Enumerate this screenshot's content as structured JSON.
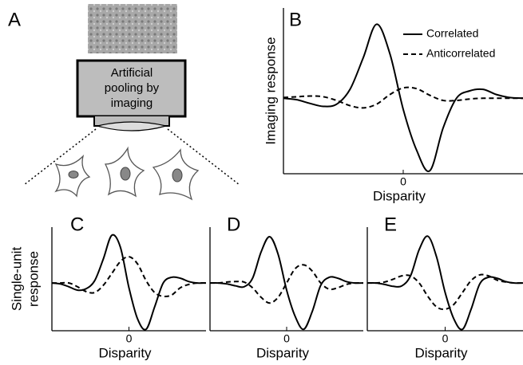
{
  "diagram": {
    "panel_label": "A",
    "box_text": [
      "Artificial",
      "pooling by",
      "imaging"
    ]
  },
  "chart_data": [
    {
      "type": "line",
      "panel_label": "B",
      "ylabel": "Imaging response",
      "xlabel": "Disparity",
      "xlim": [
        -0.9,
        0.9
      ],
      "ylim": [
        -1.02,
        1.22
      ],
      "xticks": [
        0
      ],
      "legend": "upper right",
      "x": [
        -0.9,
        -0.8,
        -0.7,
        -0.6,
        -0.5,
        -0.4,
        -0.3,
        -0.2,
        -0.1,
        0,
        0.1,
        0.2,
        0.3,
        0.4,
        0.5,
        0.6,
        0.7,
        0.8,
        0.9
      ],
      "series": [
        {
          "name": "Correlated",
          "color": "#000000",
          "style": "solid",
          "values": [
            0,
            -0.02,
            -0.07,
            -0.11,
            -0.08,
            0.12,
            0.55,
            1.0,
            0.6,
            -0.15,
            -0.7,
            -0.98,
            -0.4,
            0.0,
            0.1,
            0.12,
            0.05,
            0.01,
            0
          ]
        },
        {
          "name": "Anticorrelated",
          "color": "#000000",
          "style": "dashed",
          "values": [
            0.01,
            0.02,
            0.03,
            0.02,
            -0.03,
            -0.1,
            -0.13,
            -0.08,
            0.05,
            0.14,
            0.13,
            0.04,
            -0.03,
            -0.03,
            -0.01,
            0,
            0,
            0,
            0
          ]
        }
      ]
    },
    {
      "type": "line",
      "panel_label": "C",
      "ylabel": [
        "Single-unit",
        "response"
      ],
      "xlabel": "Disparity",
      "xlim": [
        -0.9,
        0.9
      ],
      "ylim": [
        -1.0,
        1.17
      ],
      "xticks": [
        0
      ],
      "legend": false,
      "x": [
        -0.9,
        -0.8,
        -0.7,
        -0.6,
        -0.5,
        -0.4,
        -0.3,
        -0.2,
        -0.1,
        0,
        0.1,
        0.2,
        0.3,
        0.4,
        0.5,
        0.6,
        0.7,
        0.8,
        0.9
      ],
      "series": [
        {
          "color": "#000000",
          "style": "solid",
          "values": [
            0,
            -0.02,
            -0.08,
            -0.15,
            -0.12,
            0.05,
            0.5,
            1.0,
            0.75,
            -0.1,
            -0.75,
            -0.97,
            -0.5,
            0.0,
            0.12,
            0.1,
            0.03,
            0,
            0
          ]
        },
        {
          "color": "#000000",
          "style": "dashed",
          "values": [
            0,
            0,
            0,
            -0.08,
            -0.18,
            -0.2,
            -0.05,
            0.2,
            0.45,
            0.55,
            0.4,
            0.05,
            -0.2,
            -0.28,
            -0.25,
            -0.1,
            -0.03,
            0,
            0
          ]
        }
      ]
    },
    {
      "type": "line",
      "panel_label": "D",
      "xlabel": "Disparity",
      "xlim": [
        -0.9,
        0.9
      ],
      "ylim": [
        -1.0,
        1.17
      ],
      "xticks": [
        0
      ],
      "legend": false,
      "x": [
        -0.9,
        -0.8,
        -0.7,
        -0.6,
        -0.5,
        -0.4,
        -0.3,
        -0.2,
        -0.1,
        0,
        0.1,
        0.2,
        0.3,
        0.4,
        0.5,
        0.6,
        0.7,
        0.8,
        0.9
      ],
      "series": [
        {
          "color": "#000000",
          "style": "solid",
          "values": [
            0,
            0,
            -0.02,
            -0.06,
            -0.08,
            0.1,
            0.65,
            0.97,
            0.6,
            -0.15,
            -0.7,
            -0.97,
            -0.6,
            -0.05,
            0.12,
            0.1,
            0.03,
            0,
            0
          ]
        },
        {
          "color": "#000000",
          "style": "dashed",
          "values": [
            0,
            0,
            0.02,
            0.03,
            0.02,
            -0.1,
            -0.3,
            -0.42,
            -0.3,
            0,
            0.3,
            0.38,
            0.25,
            0,
            -0.13,
            -0.1,
            -0.03,
            0,
            0
          ]
        }
      ]
    },
    {
      "type": "line",
      "panel_label": "E",
      "xlabel": "Disparity",
      "xlim": [
        -0.9,
        0.9
      ],
      "ylim": [
        -1.0,
        1.17
      ],
      "xticks": [
        0
      ],
      "legend": false,
      "x": [
        -0.9,
        -0.8,
        -0.7,
        -0.6,
        -0.5,
        -0.4,
        -0.3,
        -0.2,
        -0.1,
        0,
        0.1,
        0.2,
        0.3,
        0.4,
        0.5,
        0.6,
        0.7,
        0.8,
        0.9
      ],
      "series": [
        {
          "color": "#000000",
          "style": "solid",
          "values": [
            0,
            0,
            -0.03,
            -0.07,
            -0.06,
            0.15,
            0.7,
            0.98,
            0.55,
            -0.2,
            -0.75,
            -0.97,
            -0.55,
            -0.02,
            0.12,
            0.1,
            0.03,
            0,
            0
          ]
        },
        {
          "color": "#000000",
          "style": "dashed",
          "values": [
            0,
            0,
            0.02,
            0.08,
            0.15,
            0.15,
            0,
            -0.28,
            -0.5,
            -0.55,
            -0.45,
            -0.2,
            0.05,
            0.17,
            0.15,
            0.06,
            0.02,
            0,
            0
          ]
        }
      ]
    }
  ]
}
